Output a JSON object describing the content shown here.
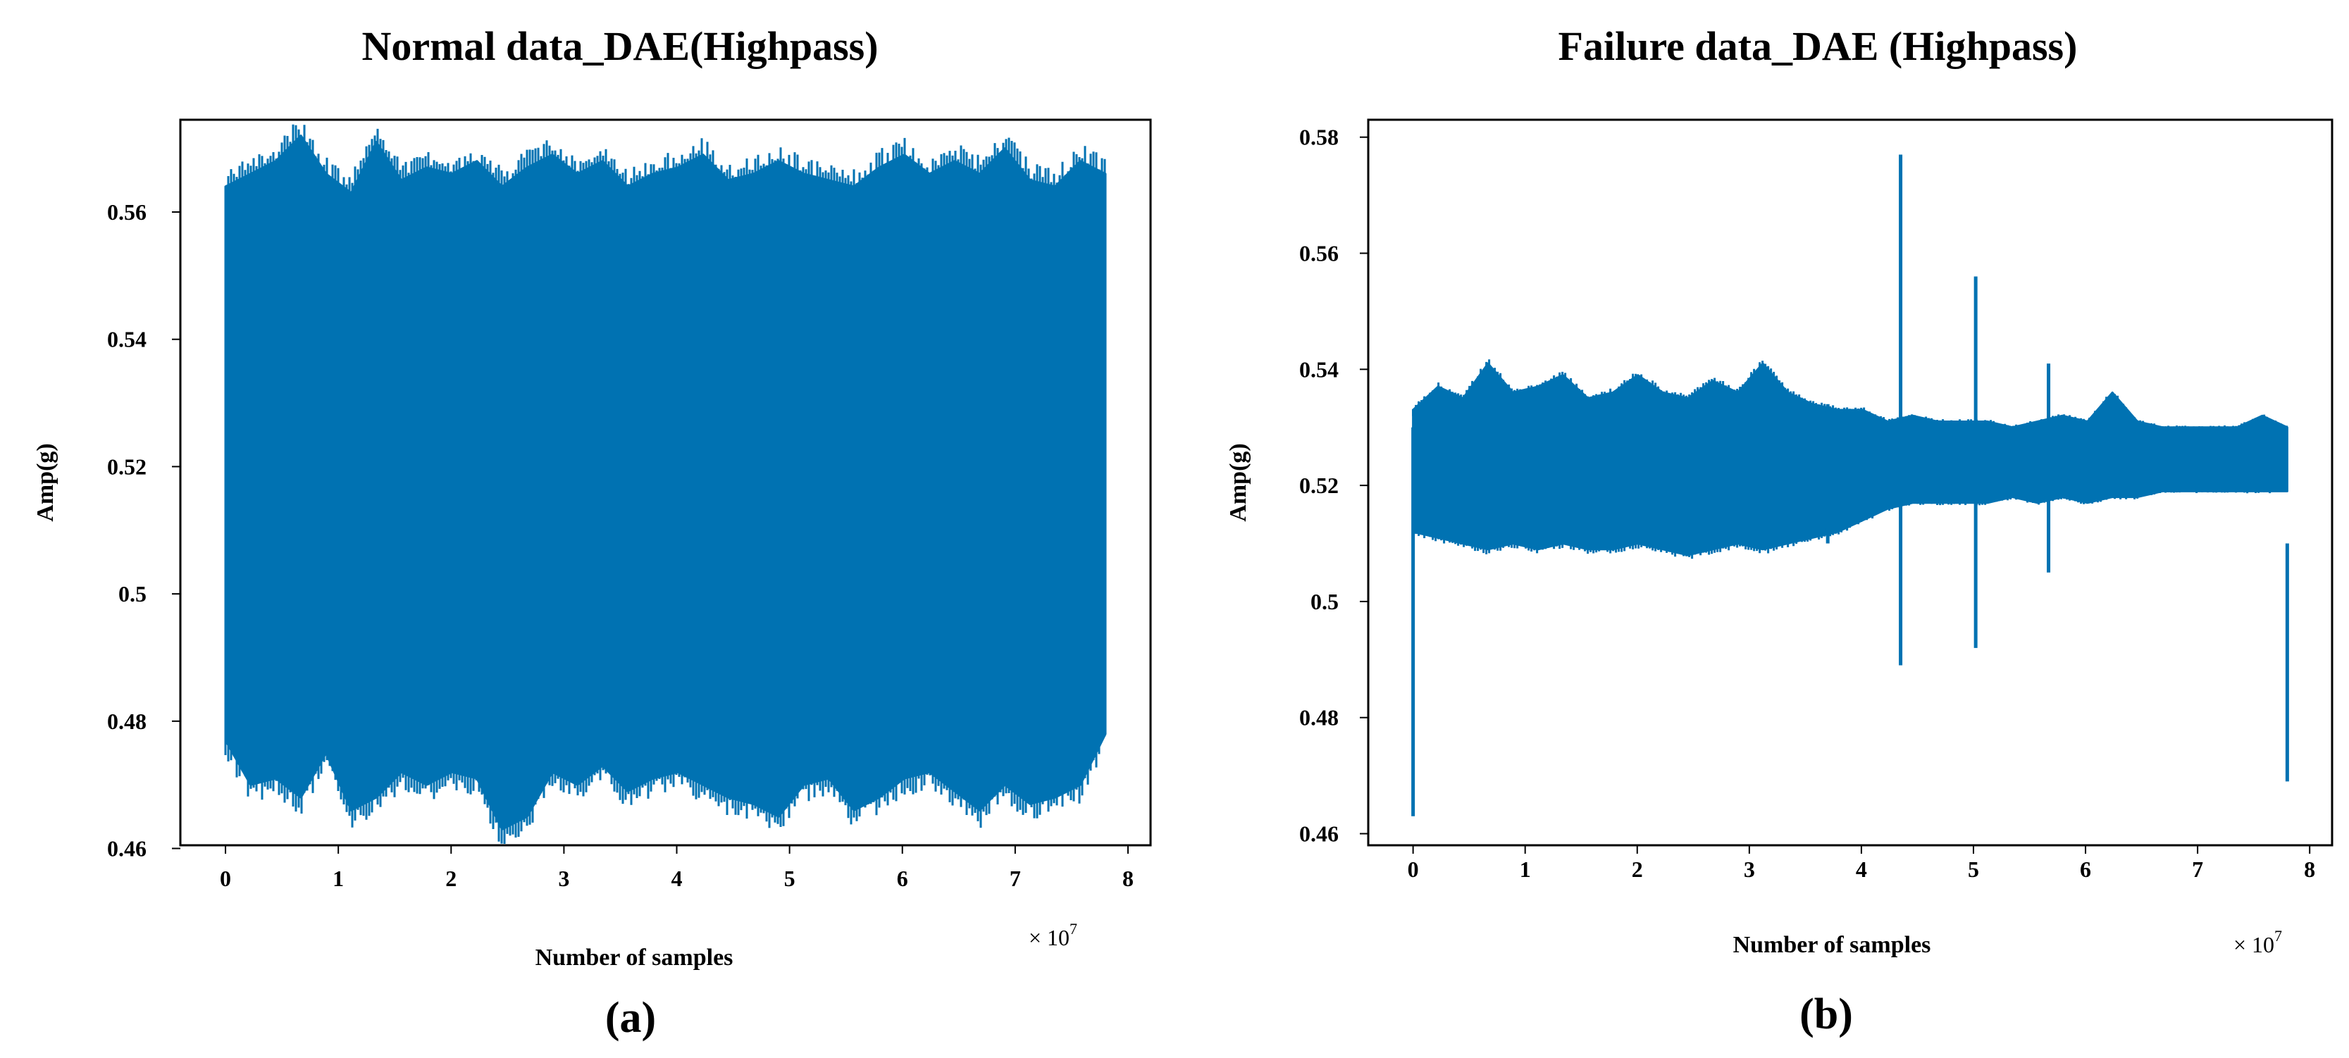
{
  "chart_data": [
    {
      "type": "line",
      "title": "Normal data_DAE(Highpass)",
      "xlabel": "Number of samples",
      "ylabel": "Amp(g)",
      "x_multiplier": "× 10",
      "x_multiplier_exp": "7",
      "panel_label": "(a)",
      "xlim": [
        -0.4,
        8.2
      ],
      "ylim": [
        0.4605,
        0.5745
      ],
      "xticks": [
        0,
        1,
        2,
        3,
        4,
        5,
        6,
        7,
        8
      ],
      "xtick_labels": [
        "0",
        "1",
        "2",
        "3",
        "4",
        "5",
        "6",
        "7",
        "8"
      ],
      "yticks": [
        0.46,
        0.48,
        0.5,
        0.52,
        0.54,
        0.56
      ],
      "ytick_labels": [
        "0.46",
        "0.48",
        "0.5",
        "0.52",
        "0.54",
        "0.56"
      ],
      "series": [
        {
          "color": "#0072b2",
          "x_range": [
            0,
            7.8
          ],
          "band_upper": [
            0.564,
            0.566,
            0.568,
            0.572,
            0.566,
            0.563,
            0.571,
            0.565,
            0.567,
            0.566,
            0.568,
            0.564,
            0.567,
            0.569,
            0.566,
            0.568,
            0.564,
            0.566,
            0.567,
            0.569,
            0.565,
            0.566,
            0.568,
            0.566,
            0.565,
            0.564,
            0.567,
            0.569,
            0.566,
            0.568,
            0.566,
            0.57,
            0.565,
            0.564,
            0.568,
            0.566
          ],
          "band_lower": [
            0.477,
            0.47,
            0.471,
            0.468,
            0.475,
            0.466,
            0.468,
            0.472,
            0.47,
            0.472,
            0.471,
            0.463,
            0.465,
            0.472,
            0.47,
            0.473,
            0.469,
            0.471,
            0.472,
            0.47,
            0.468,
            0.467,
            0.465,
            0.47,
            0.471,
            0.466,
            0.468,
            0.471,
            0.472,
            0.469,
            0.466,
            0.47,
            0.467,
            0.468,
            0.47,
            0.478
          ],
          "events": []
        }
      ]
    },
    {
      "type": "line",
      "title": "Failure data_DAE (Highpass)",
      "xlabel": "Number of samples",
      "ylabel": "Amp(g)",
      "x_multiplier": "× 10",
      "x_multiplier_exp": "7",
      "panel_label": "(b)",
      "xlim": [
        -0.4,
        8.2
      ],
      "ylim": [
        0.458,
        0.583
      ],
      "xticks": [
        0,
        1,
        2,
        3,
        4,
        5,
        6,
        7,
        8
      ],
      "xtick_labels": [
        "0",
        "1",
        "2",
        "3",
        "4",
        "5",
        "6",
        "7",
        "8"
      ],
      "yticks": [
        0.46,
        0.48,
        0.5,
        0.52,
        0.54,
        0.56,
        0.58
      ],
      "ytick_labels": [
        "0.46",
        "0.48",
        "0.5",
        "0.52",
        "0.54",
        "0.56",
        "0.58"
      ],
      "series": [
        {
          "color": "#0072b2",
          "x_range": [
            0,
            7.8
          ],
          "band_upper": [
            0.533,
            0.537,
            0.535,
            0.541,
            0.536,
            0.537,
            0.539,
            0.535,
            0.536,
            0.539,
            0.536,
            0.535,
            0.538,
            0.536,
            0.541,
            0.536,
            0.534,
            0.533,
            0.533,
            0.531,
            0.532,
            0.531,
            0.531,
            0.531,
            0.53,
            0.531,
            0.532,
            0.531,
            0.536,
            0.531,
            0.53,
            0.53,
            0.53,
            0.53,
            0.532,
            0.53
          ],
          "band_lower": [
            0.512,
            0.511,
            0.51,
            0.509,
            0.51,
            0.509,
            0.51,
            0.509,
            0.509,
            0.51,
            0.509,
            0.508,
            0.509,
            0.51,
            0.509,
            0.51,
            0.511,
            0.512,
            0.514,
            0.516,
            0.517,
            0.517,
            0.517,
            0.517,
            0.518,
            0.517,
            0.518,
            0.517,
            0.518,
            0.518,
            0.519,
            0.519,
            0.519,
            0.519,
            0.519,
            0.519
          ],
          "events": [
            {
              "x": 0.0,
              "low": 0.463,
              "high": 0.53
            },
            {
              "x": 4.35,
              "low": 0.489,
              "high": 0.577
            },
            {
              "x": 5.02,
              "low": 0.492,
              "high": 0.556
            },
            {
              "x": 5.67,
              "low": 0.505,
              "high": 0.541
            },
            {
              "x": 3.7,
              "low": 0.51,
              "high": 0.534
            },
            {
              "x": 7.8,
              "low": 0.469,
              "high": 0.51
            }
          ]
        }
      ]
    }
  ]
}
